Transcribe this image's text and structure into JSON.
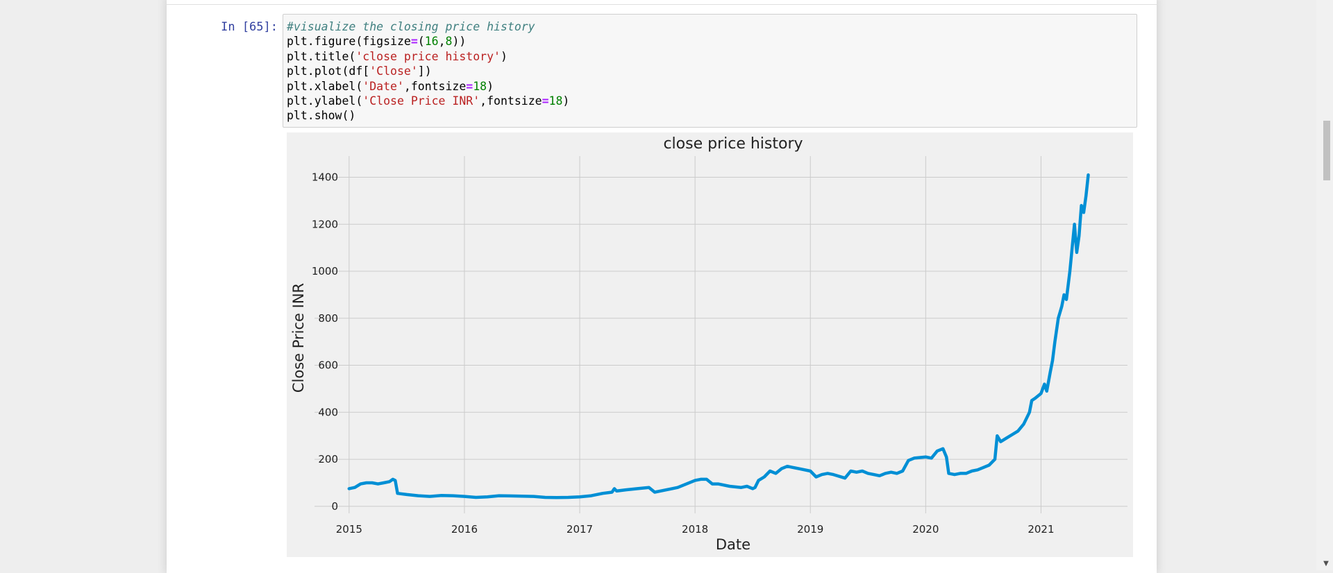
{
  "cell": {
    "prompt": "In [65]:",
    "code": {
      "line1_comment": "#visualize the closing price history",
      "line2_a": "plt.figure(figsize",
      "line2_eq": "=",
      "line2_b": "(",
      "line2_n1": "16",
      "line2_c": ",",
      "line2_n2": "8",
      "line2_d": "))",
      "line3_a": "plt.title(",
      "line3_s": "'close price history'",
      "line3_b": ")",
      "line4_a": "plt.plot(df[",
      "line4_s": "'Close'",
      "line4_b": "])",
      "line5_a": "plt.xlabel(",
      "line5_s": "'Date'",
      "line5_b": ",fontsize",
      "line5_eq": "=",
      "line5_n": "18",
      "line5_c": ")",
      "line6_a": "plt.ylabel(",
      "line6_s": "'Close Price INR'",
      "line6_b": ",fontsize",
      "line6_eq": "=",
      "line6_n": "18",
      "line6_c": ")",
      "line7": "plt.show()"
    }
  },
  "chart_data": {
    "type": "line",
    "title": "close price history",
    "xlabel": "Date",
    "ylabel": "Close Price INR",
    "x_ticks": [
      "2015",
      "2016",
      "2017",
      "2018",
      "2019",
      "2020",
      "2021"
    ],
    "y_ticks": [
      "0",
      "200",
      "400",
      "600",
      "800",
      "1000",
      "1200",
      "1400"
    ],
    "xlim": [
      2014.7,
      2021.75
    ],
    "ylim": [
      -30,
      1490
    ],
    "grid": true,
    "line_color": "#008fd5",
    "background_color": "#f0f0f0",
    "grid_color": "#cbcbcb",
    "series": [
      {
        "x": [
          2015.0,
          2015.05,
          2015.1,
          2015.15,
          2015.2,
          2015.25,
          2015.3,
          2015.35,
          2015.38,
          2015.4,
          2015.42,
          2015.5,
          2015.6,
          2015.7,
          2015.8,
          2015.9,
          2016.0,
          2016.1,
          2016.2,
          2016.3,
          2016.4,
          2016.5,
          2016.6,
          2016.7,
          2016.8,
          2016.9,
          2017.0,
          2017.1,
          2017.2,
          2017.28,
          2017.3,
          2017.32,
          2017.4,
          2017.5,
          2017.6,
          2017.65,
          2017.7,
          2017.8,
          2017.85,
          2017.9,
          2018.0,
          2018.05,
          2018.1,
          2018.15,
          2018.2,
          2018.3,
          2018.4,
          2018.45,
          2018.5,
          2018.52,
          2018.55,
          2018.6,
          2018.65,
          2018.7,
          2018.75,
          2018.8,
          2018.85,
          2018.9,
          2019.0,
          2019.05,
          2019.1,
          2019.15,
          2019.2,
          2019.3,
          2019.35,
          2019.4,
          2019.45,
          2019.5,
          2019.55,
          2019.6,
          2019.65,
          2019.7,
          2019.75,
          2019.8,
          2019.85,
          2019.9,
          2020.0,
          2020.05,
          2020.1,
          2020.15,
          2020.18,
          2020.2,
          2020.25,
          2020.3,
          2020.35,
          2020.4,
          2020.45,
          2020.5,
          2020.55,
          2020.6,
          2020.62,
          2020.65,
          2020.7,
          2020.75,
          2020.8,
          2020.85,
          2020.9,
          2020.92,
          2020.95,
          2021.0,
          2021.03,
          2021.05,
          2021.08,
          2021.1,
          2021.12,
          2021.15,
          2021.18,
          2021.2,
          2021.22,
          2021.25,
          2021.27,
          2021.29,
          2021.31,
          2021.33,
          2021.35,
          2021.37,
          2021.39,
          2021.41
        ],
        "y": [
          75,
          80,
          95,
          100,
          100,
          95,
          100,
          105,
          115,
          110,
          55,
          50,
          45,
          42,
          46,
          45,
          42,
          38,
          40,
          45,
          44,
          43,
          42,
          38,
          37,
          38,
          40,
          45,
          55,
          60,
          75,
          65,
          70,
          75,
          80,
          60,
          65,
          75,
          80,
          90,
          110,
          115,
          115,
          95,
          95,
          85,
          80,
          85,
          75,
          80,
          110,
          125,
          150,
          140,
          160,
          170,
          165,
          160,
          150,
          125,
          135,
          140,
          135,
          120,
          150,
          145,
          150,
          140,
          135,
          130,
          140,
          145,
          140,
          150,
          195,
          205,
          210,
          205,
          235,
          245,
          210,
          140,
          135,
          140,
          140,
          150,
          155,
          165,
          175,
          200,
          300,
          275,
          290,
          305,
          320,
          350,
          400,
          450,
          460,
          480,
          520,
          490,
          570,
          620,
          700,
          800,
          850,
          900,
          880,
          1000,
          1100,
          1200,
          1080,
          1150,
          1280,
          1250,
          1320,
          1410
        ]
      }
    ]
  }
}
